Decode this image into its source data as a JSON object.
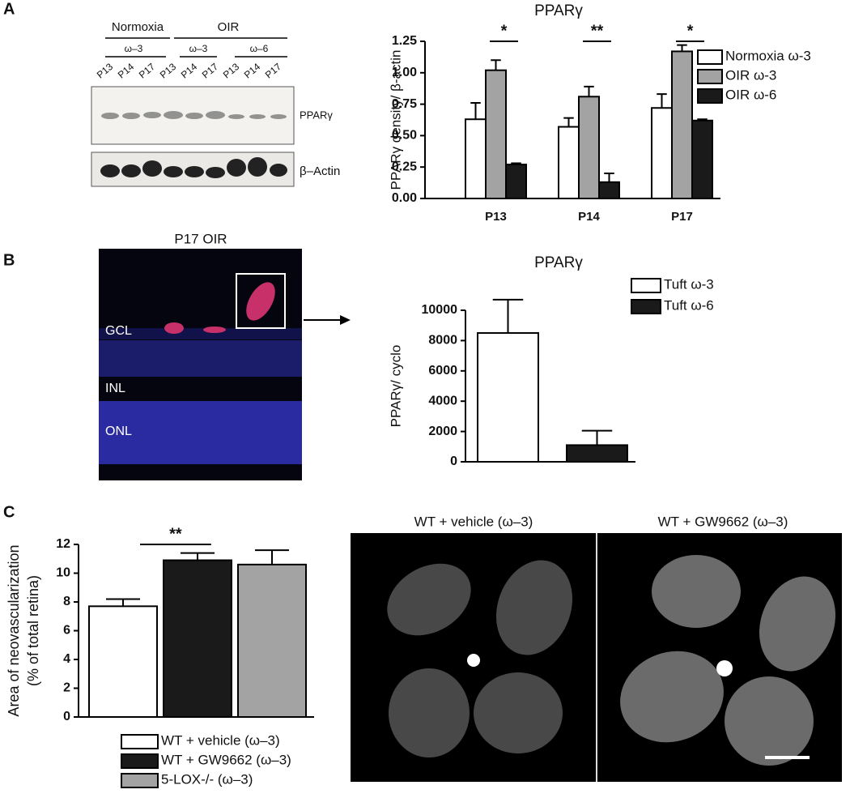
{
  "chart_data": [
    {
      "type": "bar",
      "title": "PPARγ",
      "ylabel": "PPARγ density/ β-actin",
      "categories": [
        "P13",
        "P14",
        "P17"
      ],
      "series": [
        {
          "name": "Normoxia ω-3",
          "color": "#ffffff",
          "values": [
            0.63,
            0.57,
            0.72
          ],
          "errors": [
            0.13,
            0.07,
            0.11
          ]
        },
        {
          "name": "OIR ω-3",
          "color": "#a3a3a3",
          "values": [
            1.02,
            0.81,
            1.17
          ],
          "errors": [
            0.08,
            0.08,
            0.05
          ]
        },
        {
          "name": "OIR ω-6",
          "color": "#1a1a1a",
          "values": [
            0.27,
            0.13,
            0.62
          ],
          "errors": [
            0.01,
            0.07,
            0.01
          ]
        }
      ],
      "ylim": [
        0,
        1.25
      ],
      "yticks": [
        {
          "value": 0,
          "label": "0.00"
        },
        {
          "value": 0.25,
          "label": "0.25"
        },
        {
          "value": 0.5,
          "label": "0.50"
        },
        {
          "value": 0.75,
          "label": "0.75"
        },
        {
          "value": 1,
          "label": "1.00"
        },
        {
          "value": 1.25,
          "label": "1.25"
        }
      ],
      "annotations": [
        "*",
        "**",
        "*"
      ],
      "legend": "right",
      "grid": false
    },
    {
      "type": "bar",
      "title": "PPARγ",
      "ylabel": "PPARγ/ cyclo",
      "series": [
        {
          "name": "Tuft ω-3",
          "color": "#ffffff",
          "values": [
            8500
          ],
          "errors": [
            2200
          ]
        },
        {
          "name": "Tuft ω-6",
          "color": "#1a1a1a",
          "values": [
            1100
          ],
          "errors": [
            950
          ]
        }
      ],
      "ylim": [
        0,
        10000
      ],
      "yticks": [
        0,
        2000,
        4000,
        6000,
        8000,
        10000
      ],
      "legend": "right",
      "grid": false
    },
    {
      "type": "bar",
      "ylabel": [
        "Area of neovascularization",
        "(% of total retina)"
      ],
      "series": [
        {
          "name": "WT + vehicle (ω–3)",
          "color": "#ffffff",
          "values": [
            7.7
          ],
          "errors": [
            0.5
          ]
        },
        {
          "name": "WT + GW9662 (ω–3)",
          "color": "#1a1a1a",
          "values": [
            10.9
          ],
          "errors": [
            0.5
          ]
        },
        {
          "name": "5-LOX-/- (ω–3)",
          "color": "#a3a3a3",
          "values": [
            10.6
          ],
          "errors": [
            1.0
          ]
        }
      ],
      "ylim": [
        0,
        12
      ],
      "yticks": [
        0,
        2,
        4,
        6,
        8,
        10,
        12
      ],
      "annotations": [
        "**"
      ],
      "legend": "bottom",
      "grid": false
    }
  ],
  "panel_labels": [
    "A",
    "B",
    "C"
  ],
  "blot": {
    "groups": [
      "Normoxia",
      "OIR"
    ],
    "diets": [
      "ω–3",
      "ω–3",
      "ω–6"
    ],
    "lanes": [
      "P13",
      "P14",
      "P17",
      "P13",
      "P14",
      "P17",
      "P13",
      "P14",
      "P17"
    ],
    "bands": [
      "PPARγ",
      "β–Actin"
    ]
  },
  "micrograph": {
    "title": "P17 OIR",
    "layers": [
      "GCL",
      "INL",
      "ONL"
    ]
  },
  "flatmounts": {
    "titles": [
      "WT + vehicle (ω–3)",
      "WT + GW9662 (ω–3)"
    ]
  }
}
